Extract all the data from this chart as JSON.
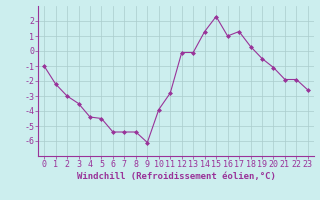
{
  "x": [
    0,
    1,
    2,
    3,
    4,
    5,
    6,
    7,
    8,
    9,
    10,
    11,
    12,
    13,
    14,
    15,
    16,
    17,
    18,
    19,
    20,
    21,
    22,
    23
  ],
  "y": [
    -1.0,
    -2.2,
    -3.0,
    -3.5,
    -4.4,
    -4.5,
    -5.4,
    -5.4,
    -5.4,
    -6.1,
    -3.9,
    -2.8,
    -0.1,
    -0.1,
    1.3,
    2.3,
    1.0,
    1.3,
    0.3,
    -0.5,
    -1.1,
    -1.9,
    -1.9,
    -2.6
  ],
  "line_color": "#993399",
  "marker": "D",
  "marker_size": 2,
  "bg_color": "#cceeee",
  "grid_color": "#aacccc",
  "xlabel": "Windchill (Refroidissement éolien,°C)",
  "ylabel": "",
  "ylim": [
    -7,
    3
  ],
  "xlim": [
    -0.5,
    23.5
  ],
  "yticks": [
    -6,
    -5,
    -4,
    -3,
    -2,
    -1,
    0,
    1,
    2
  ],
  "xticks": [
    0,
    1,
    2,
    3,
    4,
    5,
    6,
    7,
    8,
    9,
    10,
    11,
    12,
    13,
    14,
    15,
    16,
    17,
    18,
    19,
    20,
    21,
    22,
    23
  ],
  "tick_color": "#993399",
  "label_color": "#993399",
  "font_size": 6,
  "xlabel_fontsize": 6.5,
  "line_width": 0.8
}
